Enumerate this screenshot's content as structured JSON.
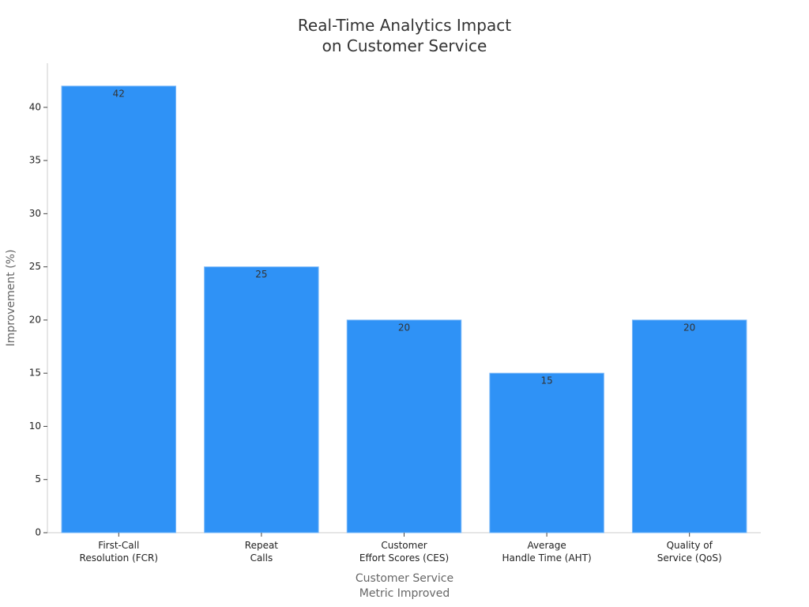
{
  "chart_data": {
    "type": "bar",
    "title": "Real-Time Analytics Impact\non Customer Service",
    "x_label": "Customer Service\nMetric Improved",
    "y_label": "Improvement (%)",
    "categories": [
      "First-Call\nResolution (FCR)",
      "Repeat\nCalls",
      "Customer\nEffort Scores (CES)",
      "Average\nHandle Time (AHT)",
      "Quality of\nService (QoS)"
    ],
    "values": [
      42,
      25,
      20,
      15,
      20
    ],
    "color": "#2f92f6",
    "ylim": [
      0,
      44
    ],
    "yticks": [
      0,
      5,
      10,
      15,
      20,
      25,
      30,
      35,
      40
    ]
  }
}
